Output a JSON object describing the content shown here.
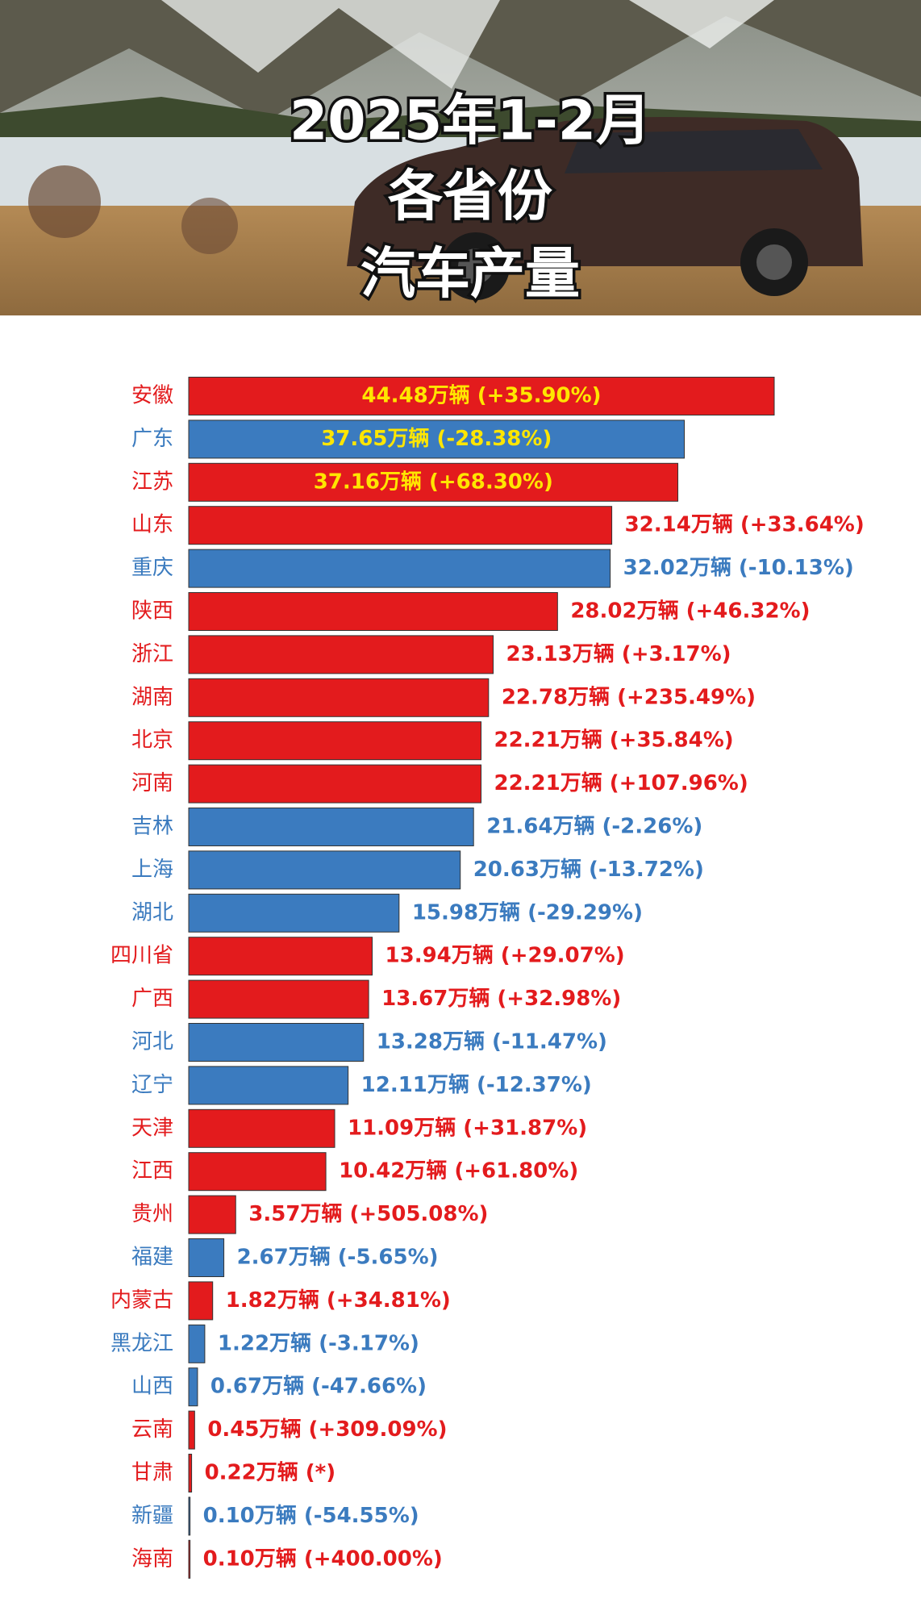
{
  "chart_data": {
    "type": "bar",
    "orientation": "horizontal",
    "title": [
      "2025年1-2月",
      "各省份",
      "汽车产量"
    ],
    "categories": [
      "安徽",
      "广东",
      "江苏",
      "山东",
      "重庆",
      "陕西",
      "浙江",
      "湖南",
      "北京",
      "河南",
      "吉林",
      "上海",
      "湖北",
      "四川省",
      "广西",
      "河北",
      "辽宁",
      "天津",
      "江西",
      "贵州",
      "福建",
      "内蒙古",
      "黑龙江",
      "山西",
      "云南",
      "甘肃",
      "新疆",
      "海南"
    ],
    "values": [
      44.48,
      37.65,
      37.16,
      32.14,
      32.02,
      28.02,
      23.13,
      22.78,
      22.21,
      22.21,
      21.64,
      20.63,
      15.98,
      13.94,
      13.67,
      13.28,
      12.11,
      11.09,
      10.42,
      3.57,
      2.67,
      1.82,
      1.22,
      0.67,
      0.45,
      0.22,
      0.1,
      0.1
    ],
    "value_labels": [
      "44.48万辆 (+35.90%)",
      "37.65万辆 (-28.38%)",
      "37.16万辆 (+68.30%)",
      "32.14万辆 (+33.64%)",
      "32.02万辆 (-10.13%)",
      "28.02万辆 (+46.32%)",
      "23.13万辆 (+3.17%)",
      "22.78万辆 (+235.49%)",
      "22.21万辆 (+35.84%)",
      "22.21万辆 (+107.96%)",
      "21.64万辆 (-2.26%)",
      "20.63万辆 (-13.72%)",
      "15.98万辆 (-29.29%)",
      "13.94万辆 (+29.07%)",
      "13.67万辆 (+32.98%)",
      "13.28万辆 (-11.47%)",
      "12.11万辆 (-12.37%)",
      "11.09万辆 (+31.87%)",
      "10.42万辆 (+61.80%)",
      "3.57万辆 (+505.08%)",
      "2.67万辆 (-5.65%)",
      "1.82万辆 (+34.81%)",
      "1.22万辆 (-3.17%)",
      "0.67万辆 (-47.66%)",
      "0.45万辆 (+309.09%)",
      "0.22万辆 (*)",
      "0.10万辆 (-54.55%)",
      "0.10万辆 (+400.00%)"
    ],
    "colors": [
      "#e31b1d",
      "#3b7bbf",
      "#e31b1d",
      "#e31b1d",
      "#3b7bbf",
      "#e31b1d",
      "#e31b1d",
      "#e31b1d",
      "#e31b1d",
      "#e31b1d",
      "#3b7bbf",
      "#3b7bbf",
      "#3b7bbf",
      "#e31b1d",
      "#e31b1d",
      "#3b7bbf",
      "#3b7bbf",
      "#e31b1d",
      "#e31b1d",
      "#e31b1d",
      "#3b7bbf",
      "#e31b1d",
      "#3b7bbf",
      "#3b7bbf",
      "#e31b1d",
      "#e31b1d",
      "#3b7bbf",
      "#e31b1d"
    ]
  }
}
